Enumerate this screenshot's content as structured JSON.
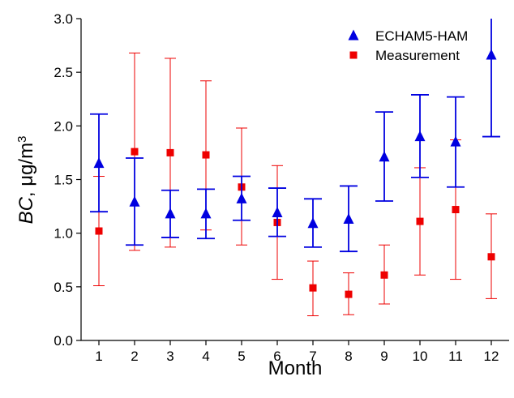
{
  "chart_data": {
    "type": "scatter",
    "title": "",
    "xlabel": "Month",
    "ylabel": {
      "variable": "BC",
      "unit_prefix": ", μg/m",
      "unit_exponent": "3"
    },
    "categories": [
      "1",
      "2",
      "3",
      "4",
      "5",
      "6",
      "7",
      "8",
      "9",
      "10",
      "11",
      "12"
    ],
    "x": [
      1,
      2,
      3,
      4,
      5,
      6,
      7,
      8,
      9,
      10,
      11,
      12
    ],
    "xlim": [
      0.5,
      12.5
    ],
    "ylim": [
      0.0,
      3.0
    ],
    "y_ticks": [
      "0.0",
      "0.5",
      "1.0",
      "1.5",
      "2.0",
      "2.5",
      "3.0"
    ],
    "grid": false,
    "legend_position": "top-right",
    "series": [
      {
        "name": "ECHAM5-HAM",
        "marker": "triangle",
        "color": "#0000e0",
        "values": [
          1.65,
          1.29,
          1.18,
          1.18,
          1.32,
          1.19,
          1.09,
          1.13,
          1.71,
          1.9,
          1.85,
          2.66
        ],
        "err_low": [
          1.2,
          0.89,
          0.96,
          0.95,
          1.12,
          0.97,
          0.87,
          0.83,
          1.3,
          1.52,
          1.43,
          1.9
        ],
        "err_high": [
          2.11,
          1.7,
          1.4,
          1.41,
          1.53,
          1.42,
          1.32,
          1.44,
          2.13,
          2.29,
          2.27,
          3.0
        ]
      },
      {
        "name": "Measurement",
        "marker": "square",
        "color": "#ee0000",
        "values": [
          1.02,
          1.76,
          1.75,
          1.73,
          1.43,
          1.1,
          0.49,
          0.43,
          0.61,
          1.11,
          1.22,
          0.78
        ],
        "err_low": [
          0.51,
          0.84,
          0.87,
          1.03,
          0.89,
          0.57,
          0.23,
          0.24,
          0.34,
          0.61,
          0.57,
          0.39
        ],
        "err_high": [
          1.53,
          2.68,
          2.63,
          2.42,
          1.98,
          1.63,
          0.74,
          0.63,
          0.89,
          1.61,
          1.87,
          1.18
        ]
      }
    ]
  }
}
